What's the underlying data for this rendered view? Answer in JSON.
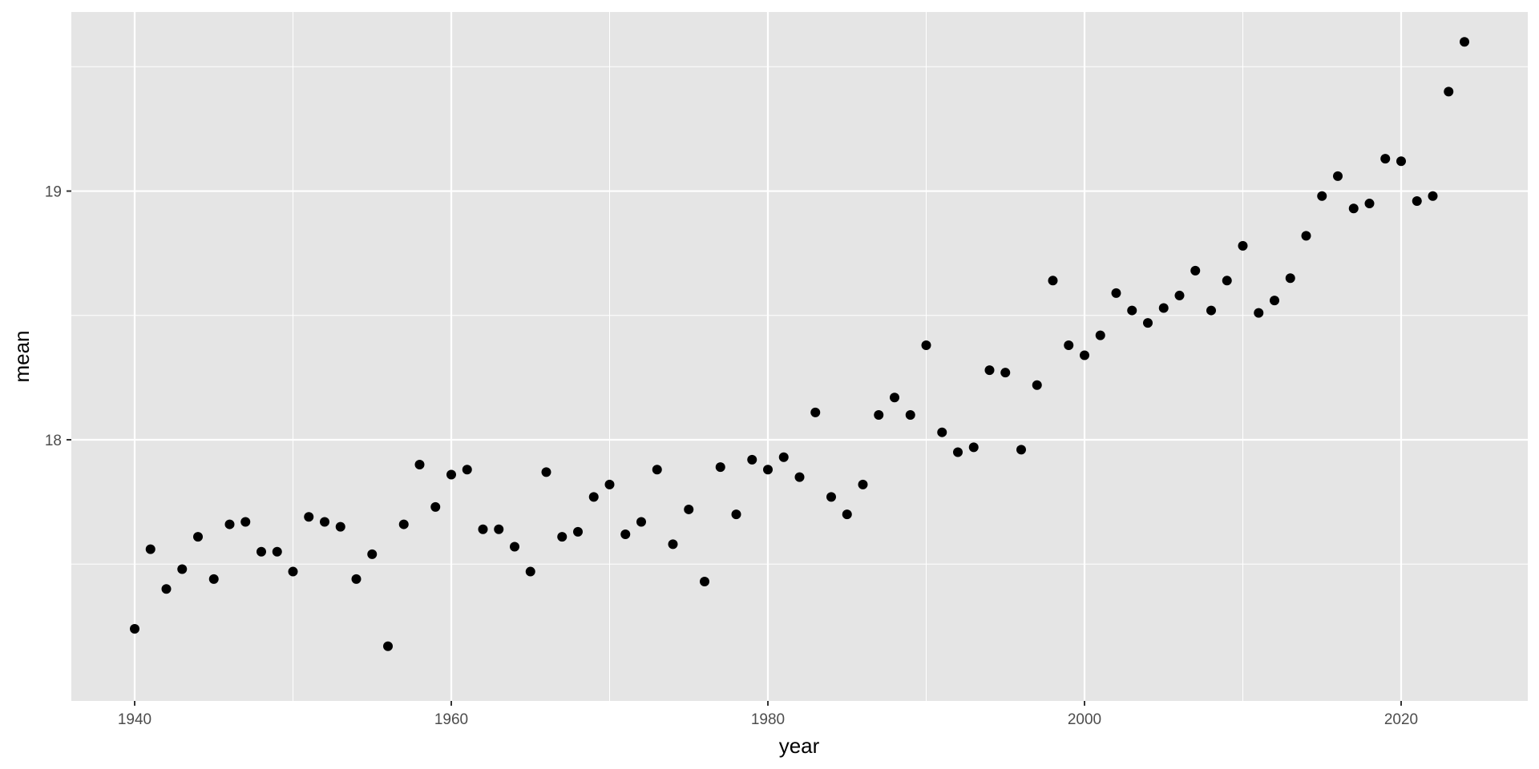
{
  "chart_data": {
    "type": "scatter",
    "title": "",
    "xlabel": "year",
    "ylabel": "mean",
    "xlim": [
      1936,
      2028
    ],
    "ylim": [
      16.95,
      19.72
    ],
    "x_ticks": [
      1940,
      1960,
      1980,
      2000,
      2020
    ],
    "x_tick_labels": [
      "1940",
      "1960",
      "1980",
      "2000",
      "2020"
    ],
    "x_minor_ticks": [
      1950,
      1970,
      1990,
      2010
    ],
    "y_ticks": [
      18,
      19
    ],
    "y_tick_labels": [
      "18",
      "19"
    ],
    "y_minor_ticks": [
      17.5,
      18.5,
      19.5
    ],
    "grid": true,
    "legend": "none",
    "colors": {
      "panel": "#e5e5e5",
      "grid": "#ffffff",
      "point": "#000000",
      "tick_text": "#4d4d4d",
      "tick_mark": "#333333"
    },
    "points": [
      {
        "x": 1940,
        "y": 17.24
      },
      {
        "x": 1941,
        "y": 17.56
      },
      {
        "x": 1942,
        "y": 17.4
      },
      {
        "x": 1943,
        "y": 17.48
      },
      {
        "x": 1944,
        "y": 17.61
      },
      {
        "x": 1945,
        "y": 17.44
      },
      {
        "x": 1946,
        "y": 17.66
      },
      {
        "x": 1947,
        "y": 17.67
      },
      {
        "x": 1948,
        "y": 17.55
      },
      {
        "x": 1949,
        "y": 17.55
      },
      {
        "x": 1950,
        "y": 17.47
      },
      {
        "x": 1951,
        "y": 17.69
      },
      {
        "x": 1952,
        "y": 17.67
      },
      {
        "x": 1953,
        "y": 17.65
      },
      {
        "x": 1954,
        "y": 17.44
      },
      {
        "x": 1955,
        "y": 17.54
      },
      {
        "x": 1956,
        "y": 17.17
      },
      {
        "x": 1957,
        "y": 17.66
      },
      {
        "x": 1958,
        "y": 17.9
      },
      {
        "x": 1959,
        "y": 17.73
      },
      {
        "x": 1960,
        "y": 17.86
      },
      {
        "x": 1961,
        "y": 17.88
      },
      {
        "x": 1962,
        "y": 17.64
      },
      {
        "x": 1963,
        "y": 17.64
      },
      {
        "x": 1964,
        "y": 17.57
      },
      {
        "x": 1965,
        "y": 17.47
      },
      {
        "x": 1966,
        "y": 17.87
      },
      {
        "x": 1967,
        "y": 17.61
      },
      {
        "x": 1968,
        "y": 17.63
      },
      {
        "x": 1969,
        "y": 17.77
      },
      {
        "x": 1970,
        "y": 17.82
      },
      {
        "x": 1971,
        "y": 17.62
      },
      {
        "x": 1972,
        "y": 17.67
      },
      {
        "x": 1973,
        "y": 17.88
      },
      {
        "x": 1974,
        "y": 17.58
      },
      {
        "x": 1975,
        "y": 17.72
      },
      {
        "x": 1976,
        "y": 17.43
      },
      {
        "x": 1977,
        "y": 17.89
      },
      {
        "x": 1978,
        "y": 17.7
      },
      {
        "x": 1979,
        "y": 17.92
      },
      {
        "x": 1980,
        "y": 17.88
      },
      {
        "x": 1981,
        "y": 17.93
      },
      {
        "x": 1982,
        "y": 17.85
      },
      {
        "x": 1983,
        "y": 18.11
      },
      {
        "x": 1984,
        "y": 17.77
      },
      {
        "x": 1985,
        "y": 17.7
      },
      {
        "x": 1986,
        "y": 17.82
      },
      {
        "x": 1987,
        "y": 18.1
      },
      {
        "x": 1988,
        "y": 18.17
      },
      {
        "x": 1989,
        "y": 18.1
      },
      {
        "x": 1990,
        "y": 18.38
      },
      {
        "x": 1991,
        "y": 18.03
      },
      {
        "x": 1992,
        "y": 17.95
      },
      {
        "x": 1993,
        "y": 17.97
      },
      {
        "x": 1994,
        "y": 18.28
      },
      {
        "x": 1995,
        "y": 18.27
      },
      {
        "x": 1996,
        "y": 17.96
      },
      {
        "x": 1997,
        "y": 18.22
      },
      {
        "x": 1998,
        "y": 18.64
      },
      {
        "x": 1999,
        "y": 18.38
      },
      {
        "x": 2000,
        "y": 18.34
      },
      {
        "x": 2001,
        "y": 18.42
      },
      {
        "x": 2002,
        "y": 18.59
      },
      {
        "x": 2003,
        "y": 18.52
      },
      {
        "x": 2004,
        "y": 18.47
      },
      {
        "x": 2005,
        "y": 18.53
      },
      {
        "x": 2006,
        "y": 18.58
      },
      {
        "x": 2007,
        "y": 18.68
      },
      {
        "x": 2008,
        "y": 18.52
      },
      {
        "x": 2009,
        "y": 18.64
      },
      {
        "x": 2010,
        "y": 18.78
      },
      {
        "x": 2011,
        "y": 18.51
      },
      {
        "x": 2012,
        "y": 18.56
      },
      {
        "x": 2013,
        "y": 18.65
      },
      {
        "x": 2014,
        "y": 18.82
      },
      {
        "x": 2015,
        "y": 18.98
      },
      {
        "x": 2016,
        "y": 19.06
      },
      {
        "x": 2017,
        "y": 18.93
      },
      {
        "x": 2018,
        "y": 18.95
      },
      {
        "x": 2019,
        "y": 19.13
      },
      {
        "x": 2020,
        "y": 19.12
      },
      {
        "x": 2021,
        "y": 18.96
      },
      {
        "x": 2022,
        "y": 18.98
      },
      {
        "x": 2023,
        "y": 19.4
      },
      {
        "x": 2024,
        "y": 19.6
      }
    ]
  }
}
